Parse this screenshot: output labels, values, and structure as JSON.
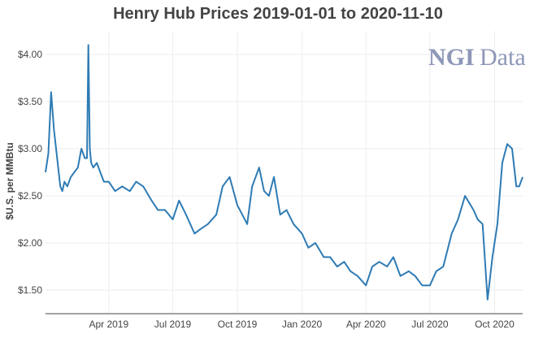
{
  "chart_data": {
    "type": "line",
    "title": "Henry Hub Prices 2019-01-01 to 2020-11-10",
    "xlabel": "",
    "ylabel": "$U.S. per MMBtu",
    "x_range": [
      "2019-01-01",
      "2020-11-10"
    ],
    "ylim": [
      1.25,
      4.25
    ],
    "y_ticks": [
      1.5,
      2.0,
      2.5,
      3.0,
      3.5,
      4.0
    ],
    "y_tick_labels": [
      "$1.50",
      "$2.00",
      "$2.50",
      "$3.00",
      "$3.50",
      "$4.00"
    ],
    "x_ticks": [
      "2019-04-01",
      "2019-07-01",
      "2019-10-01",
      "2020-01-01",
      "2020-04-01",
      "2020-07-01",
      "2020-10-01"
    ],
    "x_tick_labels": [
      "Apr 2019",
      "Jul 2019",
      "Oct 2019",
      "Jan 2020",
      "Apr 2020",
      "Jul 2020",
      "Oct 2020"
    ],
    "grid": true,
    "line_color": "#2e7bb4",
    "series": [
      {
        "x": [
          "2019-01-01",
          "2019-01-05",
          "2019-01-09",
          "2019-01-13",
          "2019-01-16",
          "2019-01-19",
          "2019-01-22",
          "2019-01-25",
          "2019-01-28",
          "2019-02-01",
          "2019-02-06",
          "2019-02-11",
          "2019-02-16",
          "2019-02-21",
          "2019-02-26",
          "2019-03-01",
          "2019-03-03",
          "2019-03-05",
          "2019-03-07",
          "2019-03-10",
          "2019-03-15",
          "2019-03-20",
          "2019-03-25",
          "2019-04-01",
          "2019-04-10",
          "2019-04-20",
          "2019-05-01",
          "2019-05-10",
          "2019-05-20",
          "2019-06-01",
          "2019-06-10",
          "2019-06-20",
          "2019-07-01",
          "2019-07-10",
          "2019-07-20",
          "2019-08-01",
          "2019-08-10",
          "2019-08-20",
          "2019-09-01",
          "2019-09-10",
          "2019-09-20",
          "2019-10-01",
          "2019-10-08",
          "2019-10-15",
          "2019-10-22",
          "2019-11-01",
          "2019-11-08",
          "2019-11-15",
          "2019-11-22",
          "2019-12-01",
          "2019-12-10",
          "2019-12-20",
          "2020-01-01",
          "2020-01-10",
          "2020-01-20",
          "2020-02-01",
          "2020-02-10",
          "2020-02-20",
          "2020-03-01",
          "2020-03-10",
          "2020-03-20",
          "2020-04-01",
          "2020-04-10",
          "2020-04-20",
          "2020-05-01",
          "2020-05-10",
          "2020-05-20",
          "2020-06-01",
          "2020-06-10",
          "2020-06-20",
          "2020-07-01",
          "2020-07-10",
          "2020-07-20",
          "2020-08-01",
          "2020-08-10",
          "2020-08-20",
          "2020-09-01",
          "2020-09-07",
          "2020-09-14",
          "2020-09-21",
          "2020-09-28",
          "2020-10-05",
          "2020-10-12",
          "2020-10-19",
          "2020-10-26",
          "2020-11-01",
          "2020-11-05",
          "2020-11-10"
        ],
        "values": [
          2.75,
          2.95,
          3.6,
          3.2,
          3.0,
          2.8,
          2.6,
          2.55,
          2.65,
          2.6,
          2.7,
          2.75,
          2.8,
          3.0,
          2.9,
          2.9,
          4.1,
          3.0,
          2.85,
          2.8,
          2.85,
          2.75,
          2.65,
          2.65,
          2.55,
          2.6,
          2.55,
          2.65,
          2.6,
          2.45,
          2.35,
          2.35,
          2.25,
          2.45,
          2.3,
          2.1,
          2.15,
          2.2,
          2.3,
          2.6,
          2.7,
          2.4,
          2.3,
          2.2,
          2.6,
          2.8,
          2.55,
          2.5,
          2.7,
          2.3,
          2.35,
          2.2,
          2.1,
          1.95,
          2.0,
          1.85,
          1.85,
          1.75,
          1.8,
          1.7,
          1.65,
          1.55,
          1.75,
          1.8,
          1.75,
          1.85,
          1.65,
          1.7,
          1.65,
          1.55,
          1.55,
          1.7,
          1.75,
          2.1,
          2.25,
          2.5,
          2.35,
          2.25,
          2.2,
          1.4,
          1.85,
          2.2,
          2.85,
          3.05,
          3.0,
          2.6,
          2.6,
          2.7
        ]
      }
    ]
  },
  "logo": {
    "part1": "NGI",
    "part2": "Data"
  }
}
